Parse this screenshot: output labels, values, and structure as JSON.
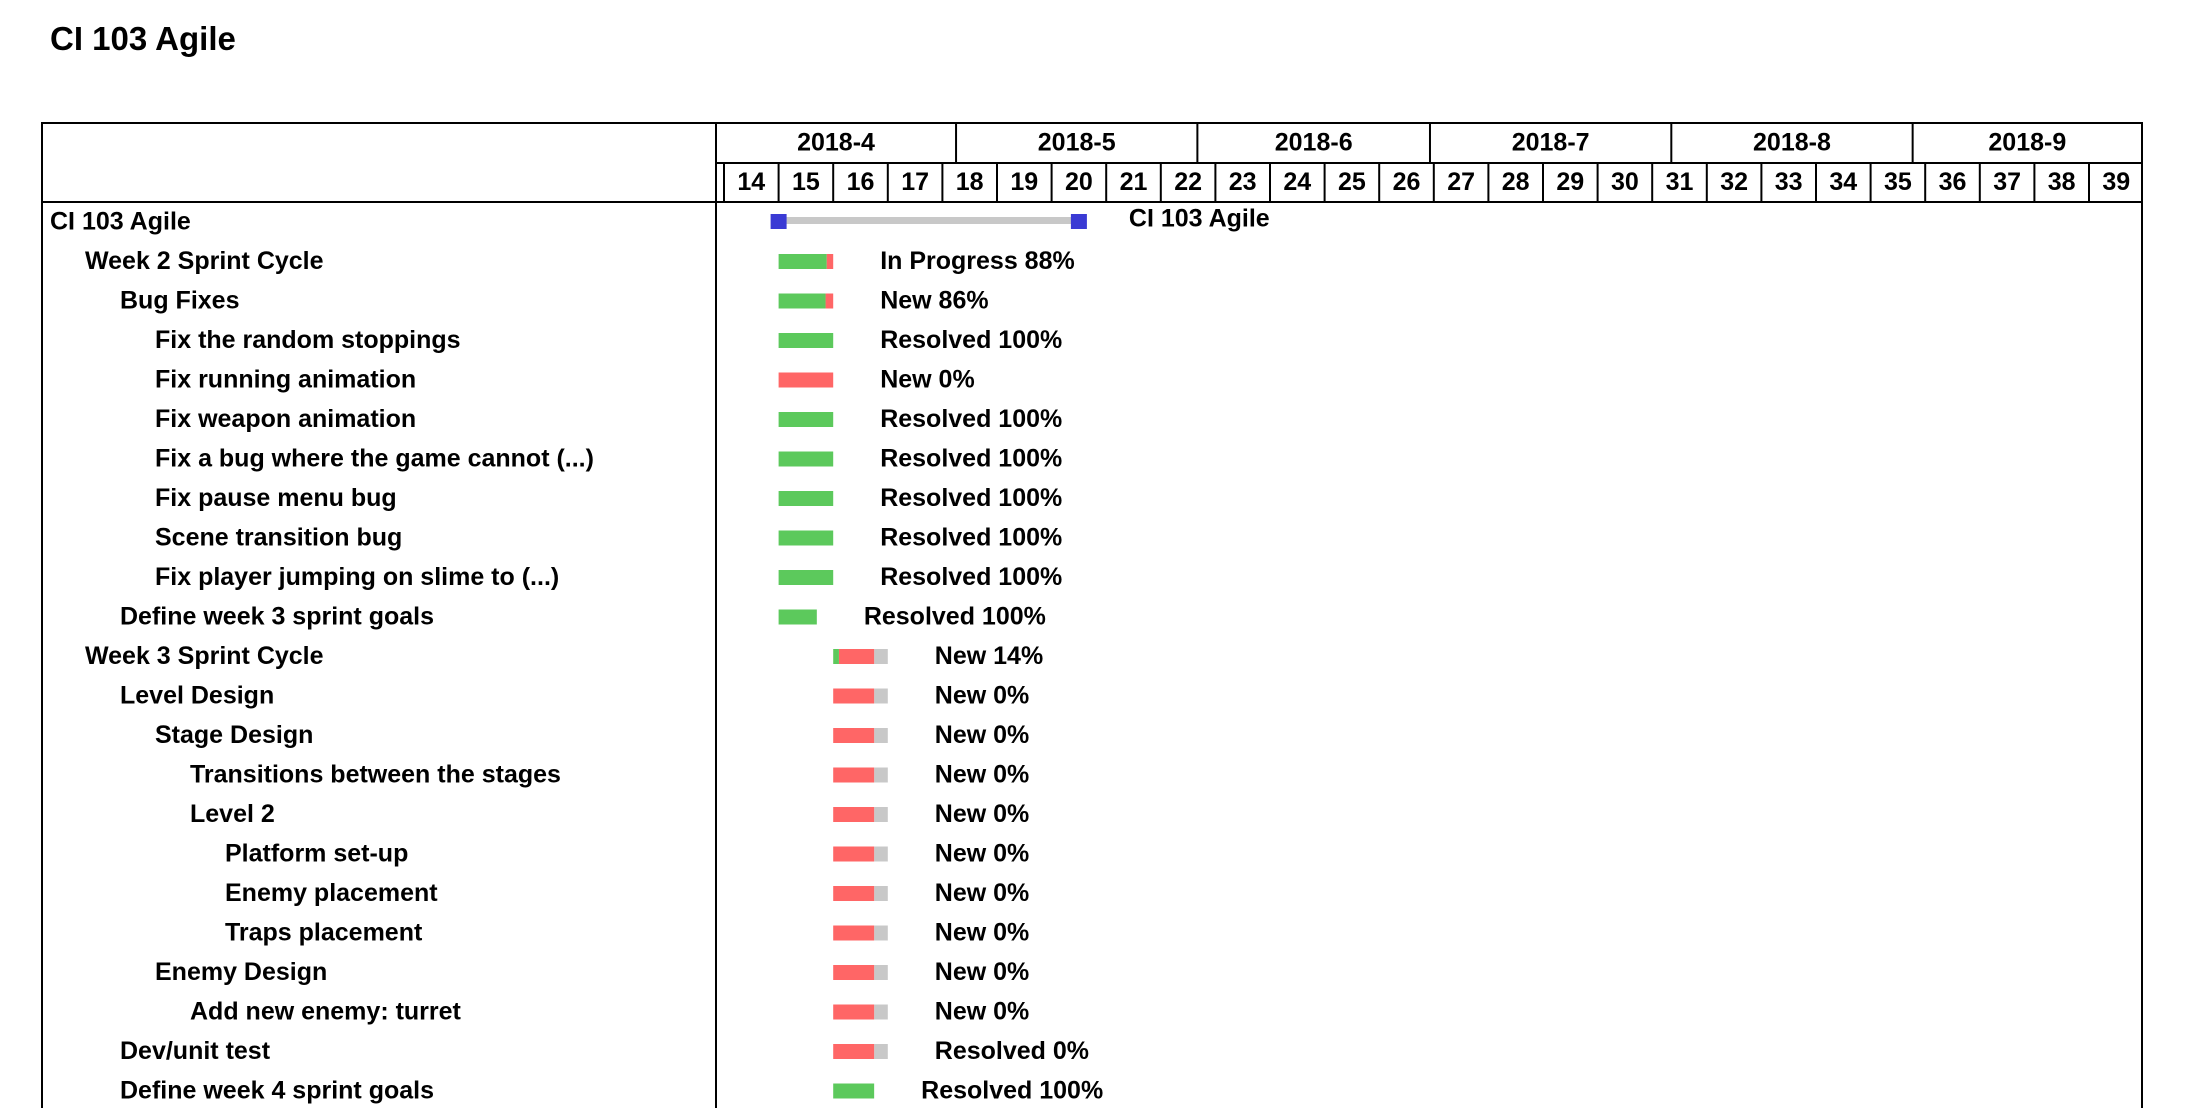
{
  "page": {
    "title": "CI 103 Agile"
  },
  "chart_data": {
    "type": "gantt",
    "title": "CI 103 Agile",
    "months": [
      "2018-4",
      "2018-5",
      "2018-6",
      "2018-7",
      "2018-8",
      "2018-9"
    ],
    "weeks": [
      14,
      15,
      16,
      17,
      18,
      19,
      20,
      21,
      22,
      23,
      24,
      25,
      26,
      27,
      28,
      29,
      30,
      31,
      32,
      33,
      34,
      35,
      36,
      37,
      38,
      39
    ],
    "colors": {
      "done": "#5cc95c",
      "remaining": "#ff6666",
      "future": "#c8c8c8",
      "project_bar": "#c8c8c8",
      "project_marker": "#3a3ad4",
      "grid": "#000000"
    },
    "tasks": [
      {
        "name": "CI 103 Agile",
        "level": 0,
        "kind": "project",
        "start_week": 15.0,
        "end_week": 20.5,
        "status": "",
        "progress": null,
        "label": "CI 103 Agile"
      },
      {
        "name": "Week 2 Sprint Cycle",
        "level": 1,
        "kind": "task",
        "start_week": 15.0,
        "end_week": 16.0,
        "status": "In Progress",
        "progress": 88,
        "label": "In Progress 88%"
      },
      {
        "name": "Bug Fixes",
        "level": 2,
        "kind": "task",
        "start_week": 15.0,
        "end_week": 16.0,
        "status": "New",
        "progress": 86,
        "label": "New 86%"
      },
      {
        "name": "Fix the random stoppings",
        "level": 3,
        "kind": "task",
        "start_week": 15.0,
        "end_week": 16.0,
        "status": "Resolved",
        "progress": 100,
        "label": "Resolved 100%"
      },
      {
        "name": "Fix running animation",
        "level": 3,
        "kind": "task",
        "start_week": 15.0,
        "end_week": 16.0,
        "status": "New",
        "progress": 0,
        "label": "New 0%"
      },
      {
        "name": "Fix weapon animation",
        "level": 3,
        "kind": "task",
        "start_week": 15.0,
        "end_week": 16.0,
        "status": "Resolved",
        "progress": 100,
        "label": "Resolved 100%"
      },
      {
        "name": "Fix a bug where the game cannot  (...)",
        "level": 3,
        "kind": "task",
        "start_week": 15.0,
        "end_week": 16.0,
        "status": "Resolved",
        "progress": 100,
        "label": "Resolved 100%"
      },
      {
        "name": "Fix pause menu bug",
        "level": 3,
        "kind": "task",
        "start_week": 15.0,
        "end_week": 16.0,
        "status": "Resolved",
        "progress": 100,
        "label": "Resolved 100%"
      },
      {
        "name": "Scene transition bug",
        "level": 3,
        "kind": "task",
        "start_week": 15.0,
        "end_week": 16.0,
        "status": "Resolved",
        "progress": 100,
        "label": "Resolved 100%"
      },
      {
        "name": "Fix player jumping on slime to  (...)",
        "level": 3,
        "kind": "task",
        "start_week": 15.0,
        "end_week": 16.0,
        "status": "Resolved",
        "progress": 100,
        "label": "Resolved 100%"
      },
      {
        "name": "Define week 3 sprint goals",
        "level": 2,
        "kind": "task",
        "start_week": 15.0,
        "end_week": 15.7,
        "status": "Resolved",
        "progress": 100,
        "label": "Resolved 100%"
      },
      {
        "name": "Week 3 Sprint Cycle",
        "level": 1,
        "kind": "task",
        "start_week": 16.0,
        "end_week": 16.75,
        "planned_end_week": 17.0,
        "status": "New",
        "progress": 14,
        "label": "New 14%"
      },
      {
        "name": "Level Design",
        "level": 2,
        "kind": "task",
        "start_week": 16.0,
        "end_week": 16.75,
        "planned_end_week": 17.0,
        "status": "New",
        "progress": 0,
        "label": "New 0%"
      },
      {
        "name": "Stage Design",
        "level": 3,
        "kind": "task",
        "start_week": 16.0,
        "end_week": 16.75,
        "planned_end_week": 17.0,
        "status": "New",
        "progress": 0,
        "label": "New 0%"
      },
      {
        "name": "Transitions between the stages",
        "level": 4,
        "kind": "task",
        "start_week": 16.0,
        "end_week": 16.75,
        "planned_end_week": 17.0,
        "status": "New",
        "progress": 0,
        "label": "New 0%"
      },
      {
        "name": "Level 2",
        "level": 4,
        "kind": "task",
        "start_week": 16.0,
        "end_week": 16.75,
        "planned_end_week": 17.0,
        "status": "New",
        "progress": 0,
        "label": "New 0%"
      },
      {
        "name": "Platform set-up",
        "level": 5,
        "kind": "task",
        "start_week": 16.0,
        "end_week": 16.75,
        "planned_end_week": 17.0,
        "status": "New",
        "progress": 0,
        "label": "New 0%"
      },
      {
        "name": "Enemy placement",
        "level": 5,
        "kind": "task",
        "start_week": 16.0,
        "end_week": 16.75,
        "planned_end_week": 17.0,
        "status": "New",
        "progress": 0,
        "label": "New 0%"
      },
      {
        "name": "Traps placement",
        "level": 5,
        "kind": "task",
        "start_week": 16.0,
        "end_week": 16.75,
        "planned_end_week": 17.0,
        "status": "New",
        "progress": 0,
        "label": "New 0%"
      },
      {
        "name": "Enemy Design",
        "level": 3,
        "kind": "task",
        "start_week": 16.0,
        "end_week": 16.75,
        "planned_end_week": 17.0,
        "status": "New",
        "progress": 0,
        "label": "New 0%"
      },
      {
        "name": "Add new enemy: turret",
        "level": 4,
        "kind": "task",
        "start_week": 16.0,
        "end_week": 16.75,
        "planned_end_week": 17.0,
        "status": "New",
        "progress": 0,
        "label": "New 0%"
      },
      {
        "name": "Dev/unit test",
        "level": 2,
        "kind": "task",
        "start_week": 16.0,
        "end_week": 16.75,
        "planned_end_week": 17.0,
        "status": "Resolved",
        "progress": 0,
        "label": "Resolved 0%"
      },
      {
        "name": "Define week 4 sprint goals",
        "level": 2,
        "kind": "task",
        "start_week": 16.0,
        "end_week": 16.75,
        "status": "Resolved",
        "progress": 100,
        "label": "Resolved 100%"
      }
    ]
  }
}
